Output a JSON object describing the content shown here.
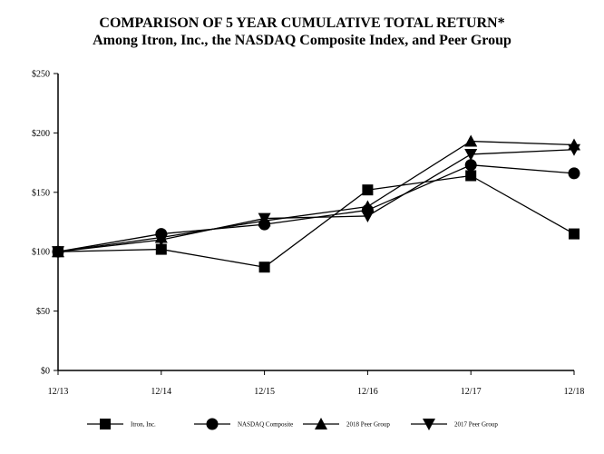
{
  "chart_data": {
    "type": "line",
    "title": "COMPARISON OF 5 YEAR CUMULATIVE TOTAL RETURN*",
    "subtitle": "Among Itron, Inc., the NASDAQ Composite Index, and Peer Group",
    "xlabel": "",
    "ylabel": "",
    "x": [
      "12/13",
      "12/14",
      "12/15",
      "12/16",
      "12/17",
      "12/18"
    ],
    "y_ticks": [
      "$0",
      "$50",
      "$100",
      "$150",
      "$200",
      "$250"
    ],
    "ylim": [
      0,
      250
    ],
    "grid": false,
    "legend_position": "bottom",
    "series": [
      {
        "name": "Itron, Inc.",
        "marker": "square",
        "values": [
          100,
          102,
          87,
          152,
          164,
          115
        ]
      },
      {
        "name": "NASDAQ Composite",
        "marker": "circle",
        "values": [
          100,
          115,
          123,
          135,
          173,
          166
        ]
      },
      {
        "name": "2018 Peer Group",
        "marker": "triangle-up",
        "values": [
          100,
          112,
          126,
          138,
          193,
          190
        ]
      },
      {
        "name": "2017 Peer Group",
        "marker": "triangle-down",
        "values": [
          100,
          110,
          128,
          130,
          182,
          186
        ]
      }
    ]
  }
}
